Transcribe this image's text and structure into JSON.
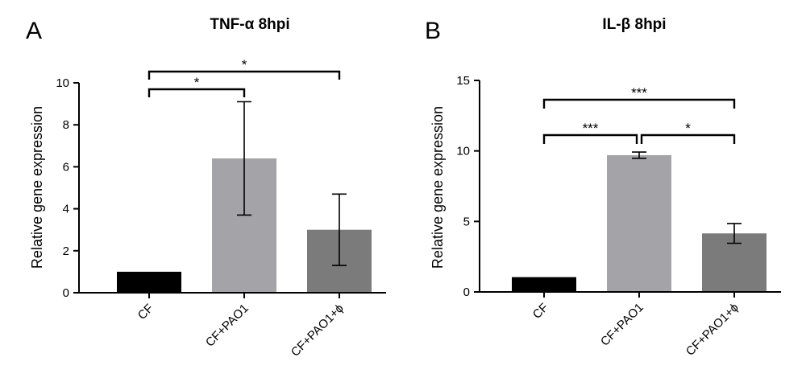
{
  "chart_data": [
    {
      "type": "bar",
      "panel": "A",
      "title": "TNF-α 8hpi",
      "ylabel": "Relative gene expression",
      "xlabel": "",
      "ylim": [
        0,
        10
      ],
      "yticks": [
        0,
        2,
        4,
        6,
        8,
        10
      ],
      "categories": [
        "CF",
        "CF+PAO1",
        "CF+PAO1+ϕ"
      ],
      "values": [
        1.0,
        6.4,
        3.0
      ],
      "errors": [
        0,
        2.7,
        1.7
      ],
      "colors": [
        "#000000",
        "#a3a3a8",
        "#7b7b7b"
      ],
      "significance": [
        {
          "from": 0,
          "to": 1,
          "label": "*"
        },
        {
          "from": 0,
          "to": 2,
          "label": "*"
        }
      ]
    },
    {
      "type": "bar",
      "panel": "B",
      "title": "IL-β  8hpi",
      "ylabel": "Relative gene expression",
      "xlabel": "",
      "ylim": [
        0,
        15
      ],
      "yticks": [
        0,
        5,
        10,
        15
      ],
      "categories": [
        "CF",
        "CF+PAO1",
        "CF+PAO1+ϕ"
      ],
      "values": [
        1.05,
        9.7,
        4.15
      ],
      "errors": [
        0,
        0.22,
        0.7
      ],
      "colors": [
        "#000000",
        "#a3a3a8",
        "#7b7b7b"
      ],
      "significance": [
        {
          "from": 0,
          "to": 1,
          "label": "***"
        },
        {
          "from": 1,
          "to": 2,
          "label": "*"
        },
        {
          "from": 0,
          "to": 2,
          "label": "***"
        }
      ]
    }
  ]
}
